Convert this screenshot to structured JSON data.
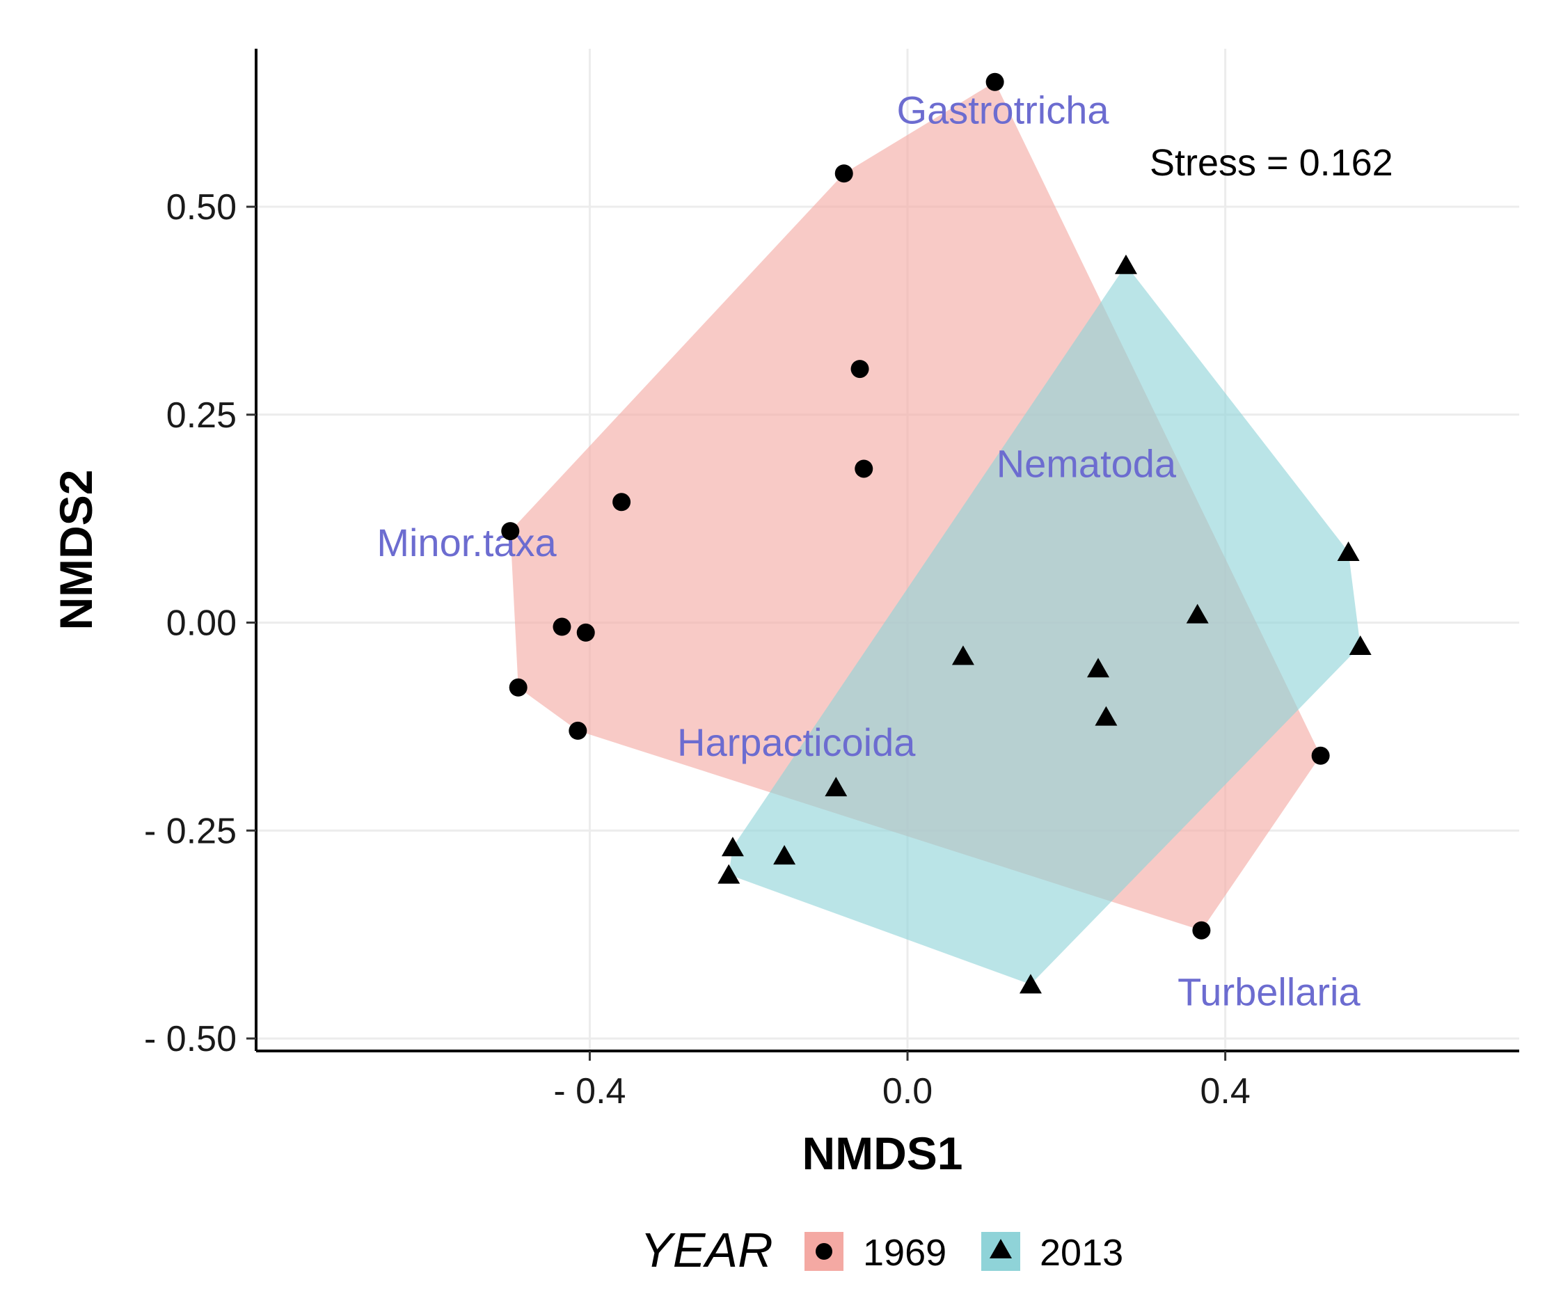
{
  "chart_data": {
    "type": "scatter",
    "xlabel": "NMDS1",
    "ylabel": "NMDS2",
    "xlim": [
      -0.82,
      0.77
    ],
    "ylim": [
      -0.515,
      0.69
    ],
    "x_ticks": [
      -0.4,
      0.0,
      0.4
    ],
    "x_tick_labels": [
      "- 0.4",
      "0.0",
      "0.4"
    ],
    "y_ticks": [
      0.5,
      0.25,
      0.0,
      -0.25,
      -0.5
    ],
    "y_tick_labels": [
      "0.50",
      "0.25",
      "0.00",
      "- 0.25",
      "- 0.50"
    ],
    "grid": true,
    "stress_label": "Stress =  0.162",
    "legend": {
      "title": "YEAR",
      "placement": "bottom",
      "entries": [
        "1969",
        "2013"
      ]
    },
    "series": [
      {
        "name": "1969",
        "marker": "circle",
        "hull_color": "#f4a9a3",
        "points": [
          {
            "x": 0.11,
            "y": 0.65
          },
          {
            "x": -0.08,
            "y": 0.54
          },
          {
            "x": -0.06,
            "y": 0.305
          },
          {
            "x": -0.055,
            "y": 0.185
          },
          {
            "x": -0.36,
            "y": 0.145
          },
          {
            "x": -0.5,
            "y": 0.11
          },
          {
            "x": -0.435,
            "y": -0.005
          },
          {
            "x": -0.405,
            "y": -0.012
          },
          {
            "x": -0.49,
            "y": -0.078
          },
          {
            "x": -0.415,
            "y": -0.13
          },
          {
            "x": 0.52,
            "y": -0.16
          },
          {
            "x": 0.37,
            "y": -0.37
          }
        ],
        "hull": [
          [
            0.11,
            0.65
          ],
          [
            -0.08,
            0.54
          ],
          [
            -0.5,
            0.11
          ],
          [
            -0.49,
            -0.078
          ],
          [
            -0.415,
            -0.13
          ],
          [
            0.37,
            -0.37
          ],
          [
            0.52,
            -0.16
          ]
        ]
      },
      {
        "name": "2013",
        "marker": "triangle",
        "hull_color": "#8fd3d8",
        "points": [
          {
            "x": 0.275,
            "y": 0.43
          },
          {
            "x": 0.555,
            "y": 0.085
          },
          {
            "x": 0.365,
            "y": 0.01
          },
          {
            "x": 0.57,
            "y": -0.028
          },
          {
            "x": 0.07,
            "y": -0.04
          },
          {
            "x": 0.24,
            "y": -0.055
          },
          {
            "x": 0.25,
            "y": -0.113
          },
          {
            "x": -0.09,
            "y": -0.198
          },
          {
            "x": -0.22,
            "y": -0.27
          },
          {
            "x": -0.155,
            "y": -0.28
          },
          {
            "x": -0.225,
            "y": -0.303
          },
          {
            "x": 0.155,
            "y": -0.435
          }
        ],
        "hull": [
          [
            0.275,
            0.43
          ],
          [
            0.555,
            0.085
          ],
          [
            0.57,
            -0.028
          ],
          [
            0.155,
            -0.435
          ],
          [
            -0.225,
            -0.303
          ],
          [
            -0.22,
            -0.27
          ]
        ]
      }
    ],
    "annotations": [
      {
        "text": "Gastrotricha",
        "x": 0.12,
        "y": 0.6
      },
      {
        "text": "Nematoda",
        "x": 0.225,
        "y": 0.175
      },
      {
        "text": "Minor.taxa",
        "x": -0.555,
        "y": 0.08
      },
      {
        "text": "Harpacticoida",
        "x": -0.14,
        "y": -0.16
      },
      {
        "text": "Turbellaria",
        "x": 0.455,
        "y": -0.46
      }
    ]
  }
}
